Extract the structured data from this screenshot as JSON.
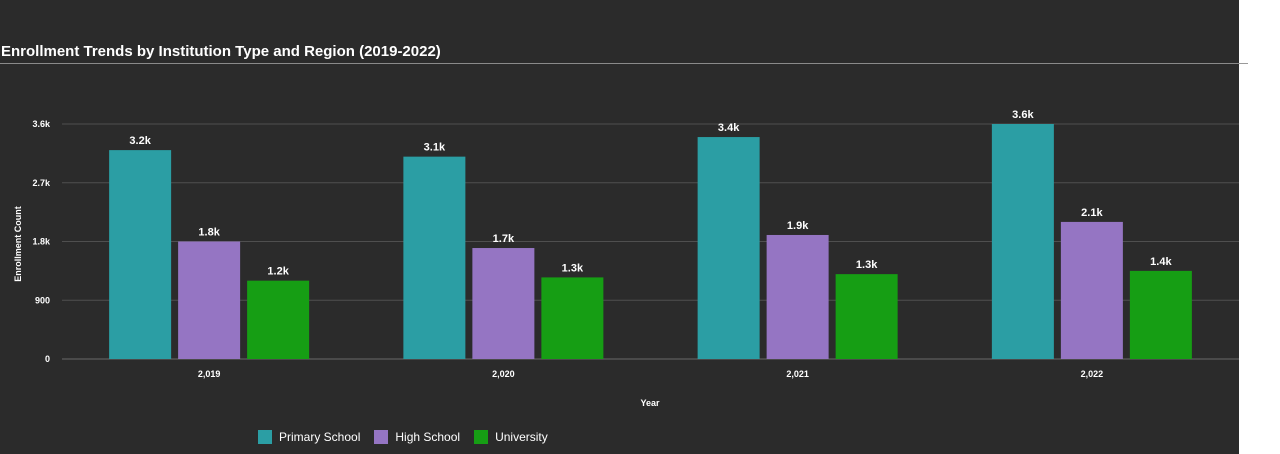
{
  "chart_data": {
    "type": "bar",
    "title": "Enrollment Trends by Institution Type and Region (2019-2022)",
    "xlabel": "Year",
    "ylabel": "Enrollment Count",
    "categories": [
      "2,019",
      "2,020",
      "2,021",
      "2,022"
    ],
    "series": [
      {
        "name": "Primary School",
        "color": "#2b9ea4",
        "values": [
          3200,
          3100,
          3400,
          3600
        ],
        "labels": [
          "3.2k",
          "3.1k",
          "3.4k",
          "3.6k"
        ]
      },
      {
        "name": "High School",
        "color": "#9575c3",
        "values": [
          1800,
          1700,
          1900,
          2100
        ],
        "labels": [
          "1.8k",
          "1.7k",
          "1.9k",
          "2.1k"
        ]
      },
      {
        "name": "University",
        "color": "#169e14",
        "values": [
          1200,
          1250,
          1300,
          1350
        ],
        "labels": [
          "1.2k",
          "1.3k",
          "1.3k",
          "1.4k"
        ]
      }
    ],
    "ylim": [
      0,
      3600
    ],
    "yticks": [
      0,
      900,
      1800,
      2700,
      3600
    ],
    "ytick_labels": [
      "0",
      "900",
      "1.8k",
      "2.7k",
      "3.6k"
    ],
    "grid": true,
    "legend_position": "bottom-left"
  }
}
